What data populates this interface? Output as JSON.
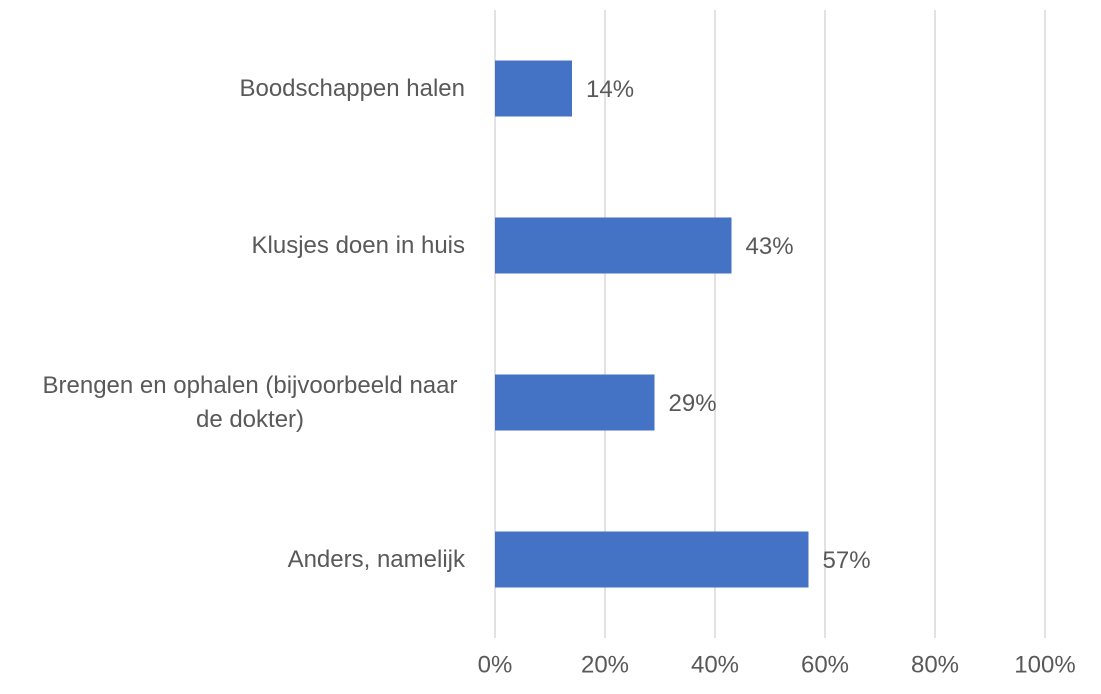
{
  "chart_data": {
    "type": "bar",
    "orientation": "horizontal",
    "categories": [
      "Boodschappen halen",
      "Klusjes doen in huis",
      "Brengen en ophalen (bijvoorbeeld naar de dokter)",
      "Anders, namelijk"
    ],
    "values": [
      14,
      43,
      29,
      57
    ],
    "value_labels": [
      "14%",
      "43%",
      "29%",
      "57%"
    ],
    "color": "#4472c4",
    "xlim": [
      0,
      100
    ],
    "xticks": [
      {
        "value": 0,
        "label": "0%"
      },
      {
        "value": 20,
        "label": "20%"
      },
      {
        "value": 40,
        "label": "40%"
      },
      {
        "value": 60,
        "label": "60%"
      },
      {
        "value": 80,
        "label": "80%"
      },
      {
        "value": 100,
        "label": "100%"
      }
    ],
    "grid": true
  }
}
